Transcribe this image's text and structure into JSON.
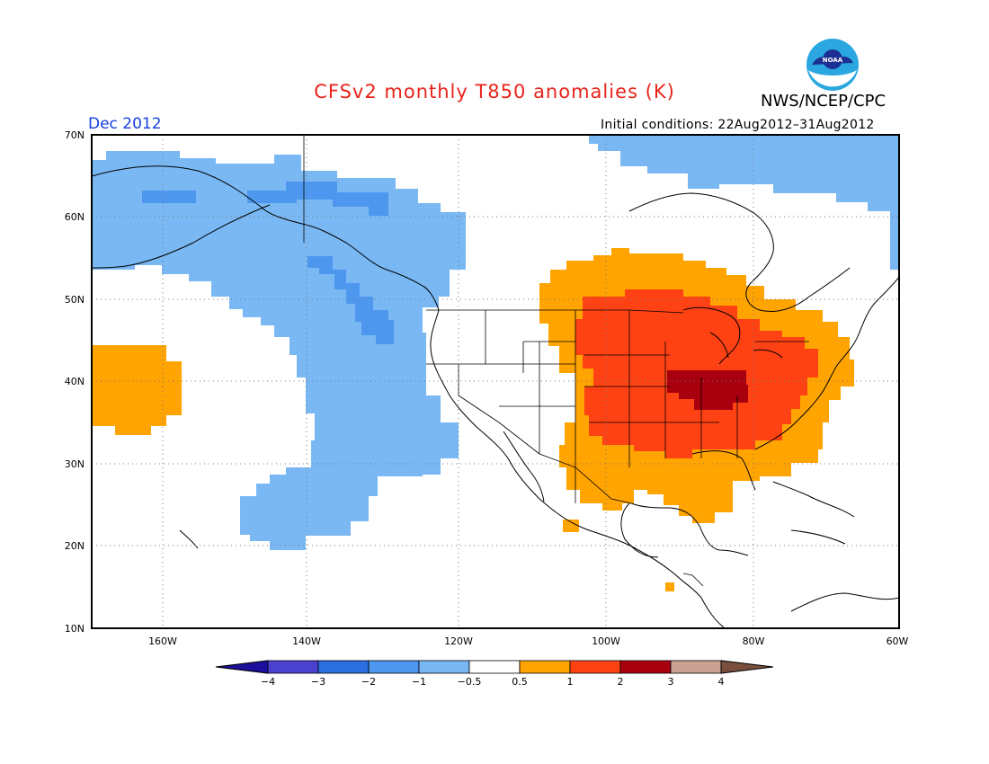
{
  "title": "CFSv2 monthly T850 anomalies (K)",
  "agency": "NWS/NCEP/CPC",
  "logo_text": "NOAA",
  "month_label": "Dec 2012",
  "initial_conditions": "Initial conditions: 22Aug2012–31Aug2012",
  "map": {
    "lat_labels": [
      "70N",
      "60N",
      "50N",
      "40N",
      "30N",
      "20N",
      "10N"
    ],
    "lon_labels": [
      "160W",
      "140W",
      "120W",
      "100W",
      "80W",
      "60W"
    ],
    "lon_range": [
      -172,
      -60
    ],
    "lat_range": [
      10,
      70
    ]
  },
  "colorbar": {
    "labels": [
      "−4",
      "−3",
      "−2",
      "−1",
      "−0.5",
      "0.5",
      "1",
      "2",
      "3",
      "4"
    ],
    "colors": [
      "#1c0f9c",
      "#4b41cf",
      "#2b6ee0",
      "#4d98ee",
      "#7ab8f4",
      "#ffffff",
      "#ffa400",
      "#ff4214",
      "#a8000e",
      "#c9a293",
      "#7a4e3c"
    ]
  },
  "anomaly_regions": [
    {
      "name": "alaska-northpacific-cool",
      "level": "-0.5 to -1",
      "color": "#7ab8f4"
    },
    {
      "name": "arctic-canada-cool",
      "level": "-0.5 to -1",
      "color": "#7ab8f4"
    },
    {
      "name": "gulf-of-alaska-cooler",
      "level": "-1 to -2",
      "color": "#4d98ee"
    },
    {
      "name": "central-pacific-warm",
      "level": "0.5 to 1",
      "color": "#ffa400"
    },
    {
      "name": "central-east-us-warm",
      "level": "0.5 to 1",
      "color": "#ffa400"
    },
    {
      "name": "midwest-warmer",
      "level": "1 to 2",
      "color": "#ff4214"
    },
    {
      "name": "ohio-valley-warmest",
      "level": "2 to 3",
      "color": "#a8000e"
    }
  ]
}
